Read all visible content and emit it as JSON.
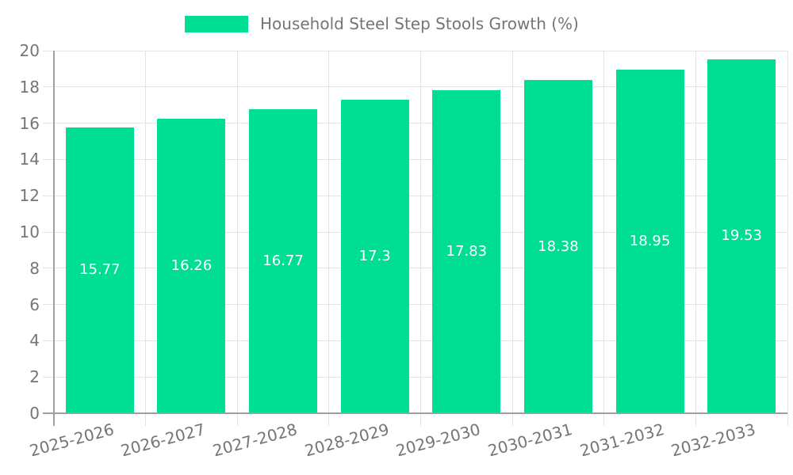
{
  "legend": {
    "label": "Household Steel Step Stools Growth (%)"
  },
  "colors": {
    "bar": "#00DE94",
    "axis": "#9f9f9f",
    "grid": "#e4e4e4",
    "tick_text": "#757575",
    "value_text": "#ffffff",
    "background": "#ffffff"
  },
  "chart_data": {
    "type": "bar",
    "title": "Household Steel Step Stools Growth (%)",
    "categories": [
      "2025-2026",
      "2026-2027",
      "2027-2028",
      "2028-2029",
      "2029-2030",
      "2030-2031",
      "2031-2032",
      "2032-2033"
    ],
    "values": [
      15.77,
      16.26,
      16.77,
      17.3,
      17.83,
      18.38,
      18.95,
      19.53
    ],
    "value_labels": [
      "15.77",
      "16.26",
      "16.77",
      "17.3",
      "17.83",
      "18.38",
      "18.95",
      "19.53"
    ],
    "xlabel": "",
    "ylabel": "",
    "ylim": [
      0,
      20
    ],
    "ytick_step": 2,
    "ytick_labels": [
      "0",
      "2",
      "4",
      "6",
      "8",
      "10",
      "12",
      "14",
      "16",
      "18",
      "20"
    ],
    "grid": true,
    "legend_position": "top"
  }
}
